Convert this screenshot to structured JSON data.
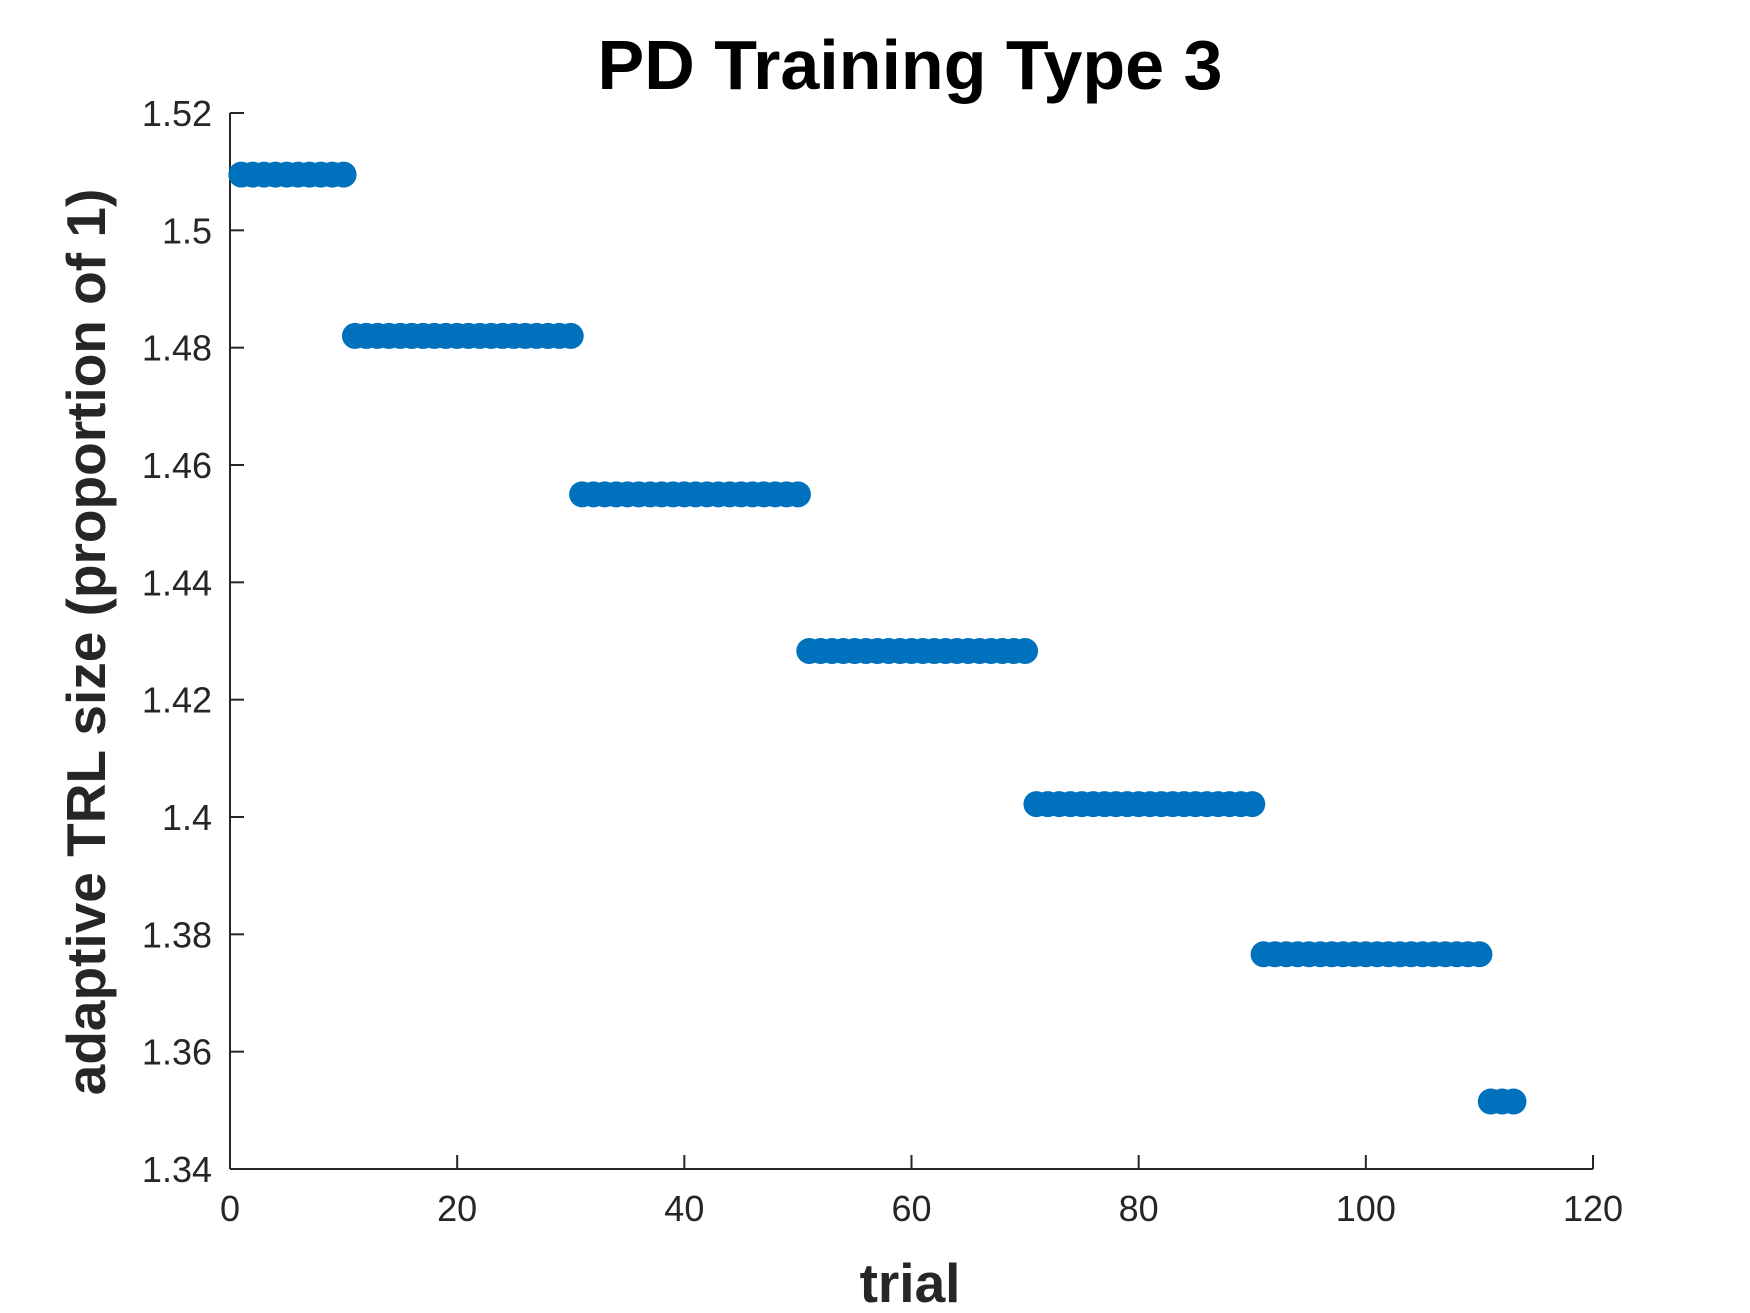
{
  "chart_data": {
    "type": "scatter",
    "title": "PD Training Type 3",
    "xlabel": "trial",
    "ylabel": "adaptive TRL size (proportion of 1)",
    "xlim": [
      0,
      120
    ],
    "ylim": [
      1.34,
      1.52
    ],
    "xticks": [
      0,
      20,
      40,
      60,
      80,
      100,
      120
    ],
    "xtick_labels": [
      "0",
      "20",
      "40",
      "60",
      "80",
      "100",
      "120"
    ],
    "yticks": [
      1.34,
      1.36,
      1.38,
      1.4,
      1.42,
      1.44,
      1.46,
      1.48,
      1.5,
      1.52
    ],
    "ytick_labels": [
      "1.34",
      "1.36",
      "1.38",
      "1.4",
      "1.42",
      "1.44",
      "1.46",
      "1.48",
      "1.5",
      "1.52"
    ],
    "grid": false,
    "marker": "filled-circle",
    "series": [
      {
        "color": "#0072BD",
        "segments": [
          {
            "x_start": 1,
            "x_end": 10,
            "y": 1.5095
          },
          {
            "x_start": 11,
            "x_end": 30,
            "y": 1.482
          },
          {
            "x_start": 31,
            "x_end": 50,
            "y": 1.455
          },
          {
            "x_start": 51,
            "x_end": 70,
            "y": 1.4283
          },
          {
            "x_start": 71,
            "x_end": 90,
            "y": 1.4022
          },
          {
            "x_start": 91,
            "x_end": 110,
            "y": 1.3766
          },
          {
            "x_start": 111,
            "x_end": 113,
            "y": 1.3515
          }
        ]
      }
    ]
  }
}
